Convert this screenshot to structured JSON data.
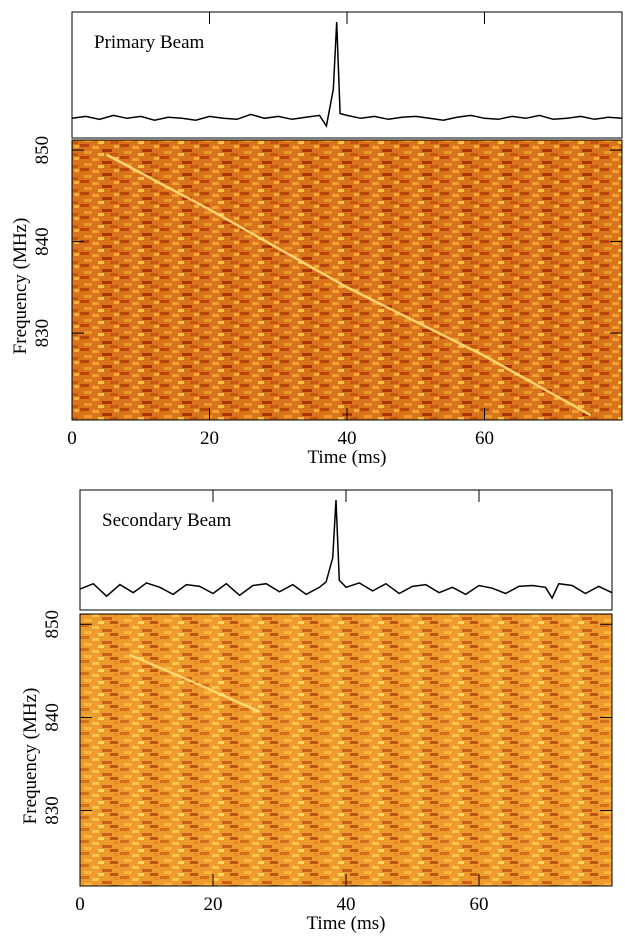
{
  "chart_data": [
    {
      "type": "dynamic_spectrum",
      "annotation": "Primary Beam",
      "xlabel": "Time (ms)",
      "ylabel": "Frequency (MHz)",
      "xlim": [
        0,
        80
      ],
      "xticks": [
        0,
        20,
        40,
        60
      ],
      "ylim": [
        820.5,
        851.1
      ],
      "yticks": [
        830,
        840,
        850
      ],
      "profile": {
        "color": "#000000",
        "x": [
          0,
          2,
          4,
          6,
          8,
          10,
          12,
          14,
          16,
          18,
          20,
          22,
          24,
          26,
          28,
          30,
          32,
          34,
          36,
          37,
          38,
          38.5,
          39,
          40,
          42,
          44,
          46,
          48,
          50,
          52,
          54,
          56,
          58,
          60,
          62,
          64,
          66,
          68,
          70,
          72,
          74,
          76,
          78,
          80
        ],
        "values": [
          0,
          0.02,
          -0.01,
          0.03,
          0,
          0.02,
          -0.02,
          0.01,
          0,
          -0.02,
          0.02,
          0,
          -0.01,
          0.04,
          0,
          0.02,
          -0.01,
          0.01,
          0.03,
          -0.08,
          0.3,
          1,
          0.05,
          0.03,
          0,
          0.02,
          -0.01,
          0.01,
          0.02,
          0,
          -0.02,
          0.01,
          0.03,
          0,
          -0.01,
          0.02,
          0,
          0.03,
          -0.01,
          0,
          0.02,
          -0.01,
          0.01,
          0
        ]
      },
      "sweep": {
        "color": "#ffe27a",
        "x": [
          5,
          20,
          40,
          60,
          75.5
        ],
        "y": [
          849.5,
          843.5,
          835,
          827.5,
          821
        ]
      }
    },
    {
      "type": "dynamic_spectrum",
      "annotation": "Secondary Beam",
      "xlabel": "Time (ms)",
      "ylabel": "Frequency (MHz)",
      "xlim": [
        0,
        80
      ],
      "xticks": [
        0,
        20,
        40,
        60
      ],
      "ylim": [
        821.9,
        851.1
      ],
      "yticks": [
        830,
        840,
        850
      ],
      "profile": {
        "color": "#000000",
        "x": [
          0,
          2,
          4,
          6,
          8,
          10,
          12,
          14,
          16,
          18,
          20,
          22,
          24,
          26,
          28,
          30,
          32,
          34,
          36,
          37,
          38,
          38.5,
          39,
          40,
          42,
          44,
          46,
          48,
          50,
          52,
          54,
          56,
          58,
          60,
          62,
          64,
          66,
          68,
          70,
          71,
          72,
          74,
          76,
          78,
          80
        ],
        "values": [
          0,
          0.06,
          -0.08,
          0.05,
          -0.04,
          0.07,
          0.02,
          -0.06,
          0.05,
          0.03,
          -0.05,
          0.06,
          -0.07,
          0.04,
          0.06,
          -0.03,
          0.05,
          -0.06,
          0.02,
          0.08,
          0.35,
          1,
          0.1,
          0.02,
          0.07,
          -0.02,
          0.06,
          -0.05,
          0.03,
          0.05,
          -0.04,
          0.02,
          -0.06,
          0.04,
          0.01,
          -0.05,
          0.03,
          0.04,
          0.02,
          -0.1,
          0.06,
          0.04,
          -0.05,
          0.03,
          -0.04
        ]
      },
      "sweep": {
        "color": "#ffe27a",
        "x": [
          7.5,
          17,
          27
        ],
        "y": [
          846.7,
          843.8,
          840.6
        ]
      }
    }
  ]
}
